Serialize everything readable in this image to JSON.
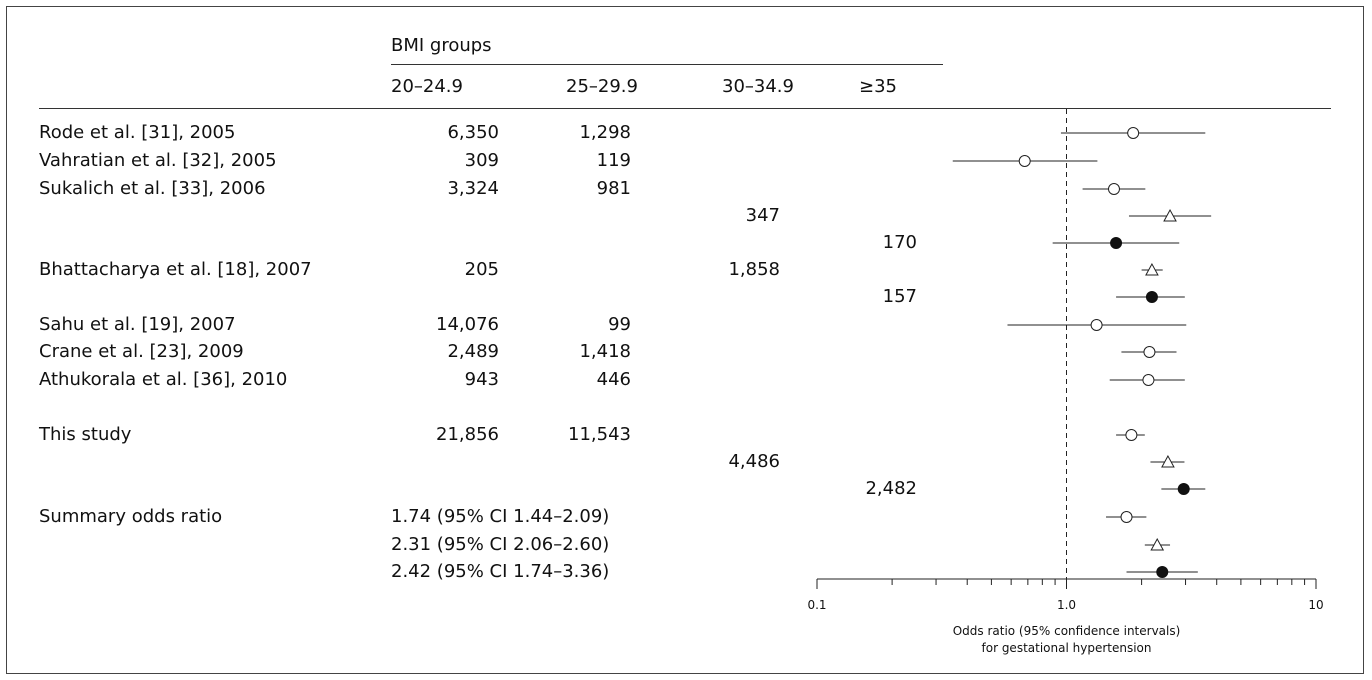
{
  "chart_data": {
    "type": "forest",
    "header": {
      "group_label": "BMI groups",
      "columns": [
        "20–24.9",
        "25–29.9",
        "30–34.9",
        "≥35"
      ]
    },
    "rows": [
      {
        "study": "Rode et al. [31], 2005",
        "c1": "6,350",
        "c2": "1,298",
        "c3": "",
        "c4": "",
        "marker": "circle-open",
        "or": 1.85,
        "lo": 0.95,
        "hi": 3.6
      },
      {
        "study": "Vahratian et al. [32], 2005",
        "c1": "309",
        "c2": "119",
        "c3": "",
        "c4": "",
        "marker": "circle-open",
        "or": 0.68,
        "lo": 0.35,
        "hi": 1.33
      },
      {
        "study": "Sukalich et al. [33], 2006",
        "c1": "3,324",
        "c2": "981",
        "c3": "",
        "c4": "",
        "marker": "circle-open",
        "or": 1.55,
        "lo": 1.16,
        "hi": 2.07
      },
      {
        "study": "",
        "c1": "",
        "c2": "",
        "c3": "347",
        "c4": "",
        "marker": "triangle-open",
        "or": 2.6,
        "lo": 1.78,
        "hi": 3.8
      },
      {
        "study": "",
        "c1": "",
        "c2": "",
        "c3": "",
        "c4": "170",
        "marker": "circle-filled",
        "or": 1.58,
        "lo": 0.88,
        "hi": 2.83
      },
      {
        "study": "Bhattacharya et al. [18], 2007",
        "c1": "205",
        "c2": "",
        "c3": "1,858",
        "c4": "",
        "marker": "triangle-open",
        "or": 2.2,
        "lo": 2.0,
        "hi": 2.43
      },
      {
        "study": "",
        "c1": "",
        "c2": "",
        "c3": "",
        "c4": "157",
        "marker": "circle-filled",
        "or": 2.2,
        "lo": 1.58,
        "hi": 2.98
      },
      {
        "study": "Sahu et al. [19], 2007",
        "c1": "14,076",
        "c2": "99",
        "c3": "",
        "c4": "",
        "marker": "circle-open",
        "or": 1.32,
        "lo": 0.58,
        "hi": 3.02
      },
      {
        "study": "Crane et al. [23], 2009",
        "c1": "2,489",
        "c2": "1,418",
        "c3": "",
        "c4": "",
        "marker": "circle-open",
        "or": 2.15,
        "lo": 1.66,
        "hi": 2.76
      },
      {
        "study": "Athukorala et al. [36], 2010",
        "c1": "943",
        "c2": "446",
        "c3": "",
        "c4": "",
        "marker": "circle-open",
        "or": 2.13,
        "lo": 1.49,
        "hi": 2.98
      },
      {
        "study": "This study",
        "c1": "21,856",
        "c2": "11,543",
        "c3": "",
        "c4": "",
        "marker": "circle-open",
        "or": 1.82,
        "lo": 1.58,
        "hi": 2.06
      },
      {
        "study": "",
        "c1": "",
        "c2": "",
        "c3": "4,486",
        "c4": "",
        "marker": "triangle-open",
        "or": 2.55,
        "lo": 2.17,
        "hi": 2.97
      },
      {
        "study": "",
        "c1": "",
        "c2": "",
        "c3": "",
        "c4": "2,482",
        "marker": "circle-filled",
        "or": 2.95,
        "lo": 2.4,
        "hi": 3.6
      },
      {
        "study": "Summary odds ratio",
        "c1": "1.74 (95% CI 1.44–2.09)",
        "c2": "",
        "c3": "",
        "c4": "",
        "marker": "circle-open",
        "or": 1.74,
        "lo": 1.44,
        "hi": 2.09
      },
      {
        "study": "",
        "c1": "2.31 (95% CI 2.06–2.60)",
        "c2": "",
        "c3": "",
        "c4": "",
        "marker": "triangle-open",
        "or": 2.31,
        "lo": 2.06,
        "hi": 2.6
      },
      {
        "study": "",
        "c1": "2.42 (95% CI 1.74–3.36)",
        "c2": "",
        "c3": "",
        "c4": "",
        "marker": "circle-filled",
        "or": 2.42,
        "lo": 1.74,
        "hi": 3.36
      }
    ],
    "x_axis": {
      "scale": "log",
      "range": [
        0.1,
        10
      ],
      "ticks": [
        0.1,
        1.0,
        10
      ],
      "tick_labels": [
        "0.1",
        "1.0",
        "10"
      ],
      "reference_line": 1.0,
      "label_line1": "Odds ratio (95% confidence intervals)",
      "label_line2": "for gestational hypertension"
    }
  }
}
